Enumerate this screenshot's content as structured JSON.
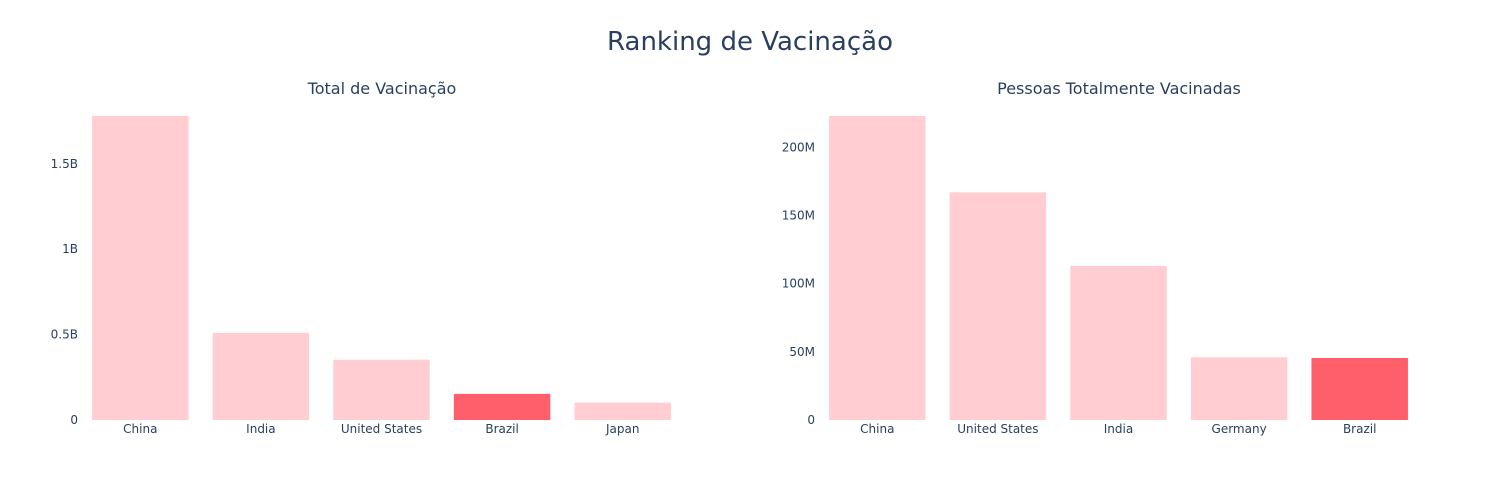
{
  "title": "Ranking de Vacinação",
  "colors": {
    "normal": "#ffcdd2",
    "highlight": "#ff5f6b",
    "text": "#2a3f5f"
  },
  "chart_data": [
    {
      "type": "bar",
      "title": "Total de Vacinação",
      "categories": [
        "China",
        "India",
        "United States",
        "Brazil",
        "Japan"
      ],
      "values": [
        1780000000,
        510000000,
        353000000,
        153000000,
        102000000
      ],
      "highlight": "Brazil",
      "ylim": [
        0,
        1780000000
      ],
      "yticks": [
        0,
        500000000,
        1000000000,
        1500000000
      ],
      "ytick_labels": [
        "0",
        "0.5B",
        "1B",
        "1.5B"
      ],
      "grid": false,
      "legend": "none"
    },
    {
      "type": "bar",
      "title": "Pessoas Totalmente Vacinadas",
      "categories": [
        "China",
        "United States",
        "India",
        "Germany",
        "Brazil"
      ],
      "values": [
        223000000,
        167000000,
        113000000,
        46000000,
        45500000
      ],
      "highlight": "Brazil",
      "ylim": [
        0,
        223000000
      ],
      "yticks": [
        0,
        50000000,
        100000000,
        150000000,
        200000000
      ],
      "ytick_labels": [
        "0",
        "50M",
        "100M",
        "150M",
        "200M"
      ],
      "grid": false,
      "legend": "none"
    }
  ]
}
